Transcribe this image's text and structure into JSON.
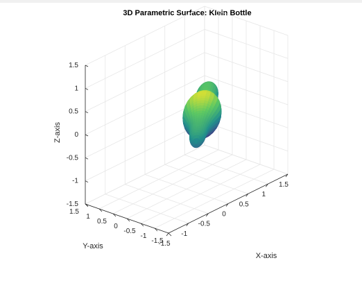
{
  "chart_data": {
    "type": "surface",
    "title": "3D Parametric Surface: Klein Bottle",
    "xlabel": "X-axis",
    "ylabel": "Y-axis",
    "zlabel": "Z-axis",
    "xlim": [
      -1.5,
      1.5
    ],
    "ylim": [
      -1.5,
      1.5
    ],
    "zlim": [
      -1.5,
      1.5
    ],
    "xticks": [
      -1.5,
      -1,
      -0.5,
      0,
      0.5,
      1,
      1.5
    ],
    "yticks": [
      -1.5,
      -1,
      -0.5,
      0,
      0.5,
      1,
      1.5
    ],
    "zticks": [
      -1.5,
      -1,
      -0.5,
      0,
      0.5,
      1,
      1.5
    ],
    "xtick_labels": [
      "-1.5",
      "-1",
      "-0.5",
      "0",
      "0.5",
      "1",
      "1.5"
    ],
    "ytick_labels": [
      "-1.5",
      "-1",
      "-0.5",
      "0",
      "0.5",
      "1",
      "1.5"
    ],
    "ztick_labels": [
      "-1.5",
      "-1",
      "-0.5",
      "0",
      "0.5",
      "1",
      "1.5"
    ],
    "grid": true,
    "colormap": [
      "#440154",
      "#3b528b",
      "#21918c",
      "#5ec962",
      "#fde725"
    ],
    "surface": {
      "u_range": [
        0,
        6.283
      ],
      "v_range": [
        0,
        6.283
      ],
      "x_extent": [
        -0.6,
        1.2
      ],
      "y_extent": [
        -1.2,
        0.9
      ],
      "z_extent": [
        -0.5,
        0.6
      ]
    }
  }
}
